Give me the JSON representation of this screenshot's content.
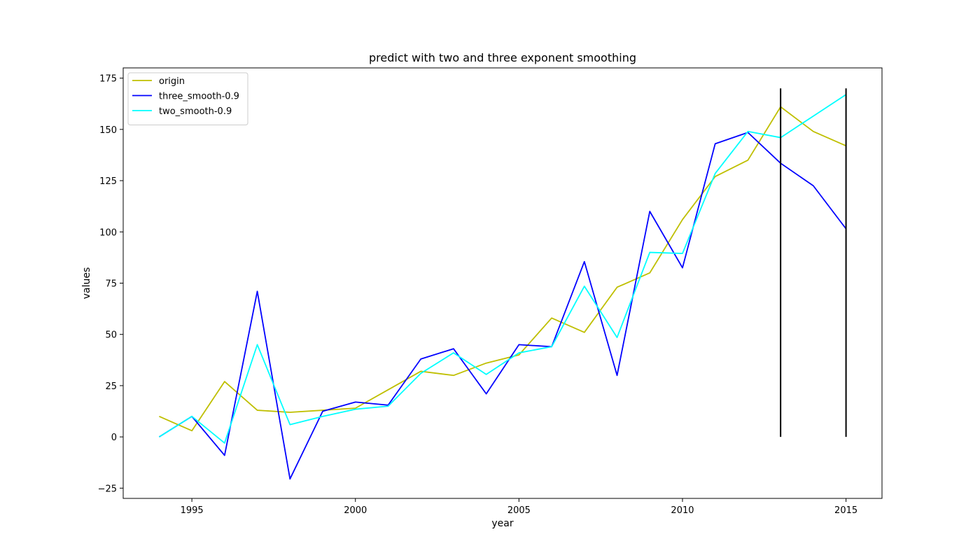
{
  "chart_data": {
    "type": "line",
    "title": "predict with two and three exponent smoothing",
    "xlabel": "year",
    "ylabel": "values",
    "xlim": [
      1992.9,
      2016.1
    ],
    "ylim": [
      -30,
      180
    ],
    "xticks": [
      1995,
      2000,
      2005,
      2010,
      2015
    ],
    "yticks": [
      -25,
      0,
      25,
      50,
      75,
      100,
      125,
      150,
      175
    ],
    "grid": false,
    "legend_position": "upper-left",
    "x": [
      1994,
      1995,
      1996,
      1997,
      1998,
      1999,
      2000,
      2001,
      2002,
      2003,
      2004,
      2005,
      2006,
      2007,
      2008,
      2009,
      2010,
      2011,
      2012,
      2013,
      2014,
      2015
    ],
    "series": [
      {
        "name": "origin",
        "color": "#bfbf00",
        "values": [
          10,
          3,
          27,
          13,
          12,
          13,
          14,
          23,
          32,
          30,
          36,
          40,
          58,
          51,
          73,
          80,
          106,
          127,
          135,
          161,
          149,
          142
        ]
      },
      {
        "name": "three_smooth-0.9",
        "color": "#0000ff",
        "values": [
          0,
          10,
          -9,
          71,
          -20.5,
          12.5,
          17,
          15.5,
          38,
          43,
          21,
          45,
          44,
          85.5,
          30,
          110,
          82.5,
          143,
          148.5,
          133.5,
          122.5,
          101.5
        ]
      },
      {
        "name": "two_smooth-0.9",
        "color": "#00ffff",
        "values": [
          0,
          10,
          -3,
          45,
          6,
          10,
          13.5,
          15,
          31,
          41,
          30.5,
          41,
          44,
          73.5,
          48.5,
          90,
          89.5,
          128.5,
          149,
          146,
          156.5,
          167
        ]
      }
    ],
    "vlines": [
      {
        "x": 2013,
        "ymin": 0,
        "ymax": 170,
        "color": "#000000"
      },
      {
        "x": 2015,
        "ymin": 0,
        "ymax": 170,
        "color": "#000000"
      }
    ]
  }
}
